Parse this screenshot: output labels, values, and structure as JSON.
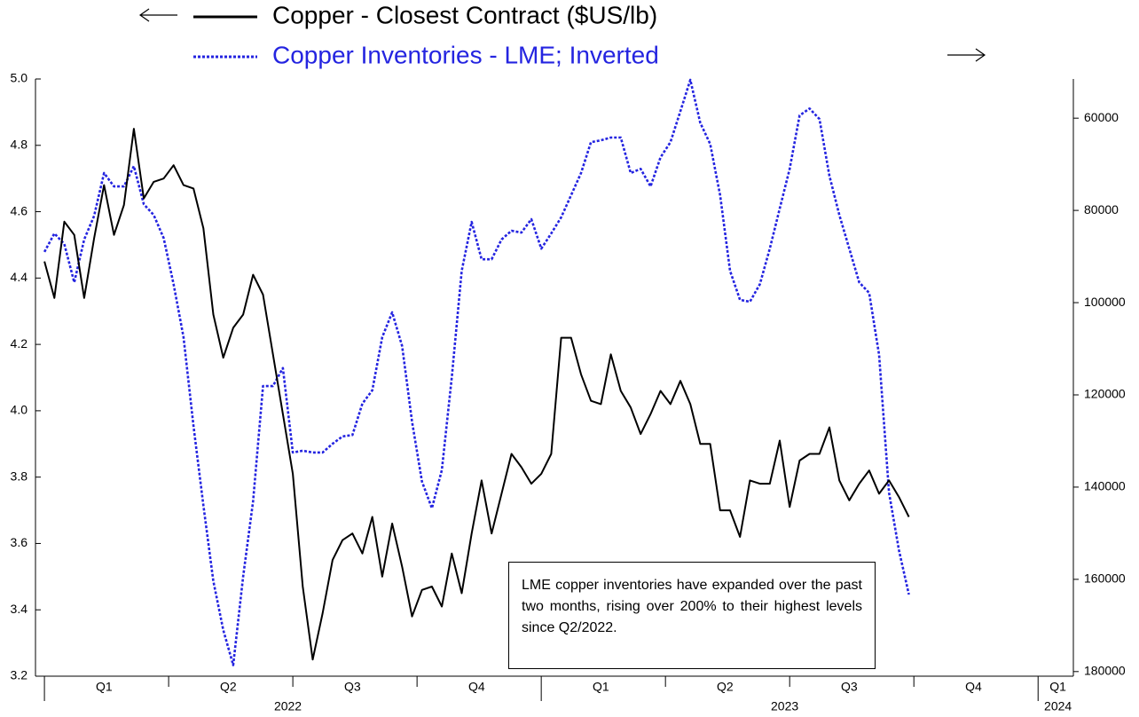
{
  "chart_data": {
    "type": "line",
    "series": [
      {
        "name": "Copper - Closest Contract ($US/lb)",
        "color": "#000000",
        "dash": false,
        "axis": "y",
        "values": [
          4.45,
          4.34,
          4.57,
          4.53,
          4.34,
          4.52,
          4.68,
          4.53,
          4.62,
          4.85,
          4.64,
          4.69,
          4.7,
          4.74,
          4.68,
          4.67,
          4.55,
          4.29,
          4.16,
          4.25,
          4.29,
          4.41,
          4.35,
          4.17,
          3.99,
          3.81,
          3.47,
          3.25,
          3.39,
          3.55,
          3.61,
          3.63,
          3.57,
          3.68,
          3.5,
          3.66,
          3.53,
          3.38,
          3.46,
          3.47,
          3.41,
          3.57,
          3.45,
          3.63,
          3.79,
          3.63,
          3.75,
          3.87,
          3.83,
          3.78,
          3.81,
          3.87,
          4.22,
          4.22,
          4.11,
          4.03,
          4.02,
          4.17,
          4.06,
          4.01,
          3.93,
          3.99,
          4.06,
          4.02,
          4.09,
          4.02,
          3.9,
          3.9,
          3.7,
          3.7,
          3.62,
          3.79,
          3.78,
          3.78,
          3.91,
          3.71,
          3.85,
          3.87,
          3.87,
          3.95,
          3.79,
          3.73,
          3.78,
          3.82,
          3.75,
          3.79,
          3.74,
          3.68
        ]
      },
      {
        "name": "Copper Inventories - LME; Inverted",
        "color": "#2424e0",
        "dash": true,
        "axis": "y2",
        "values": [
          89000,
          85000,
          87300,
          95600,
          86300,
          81200,
          71900,
          74800,
          74800,
          70400,
          78650,
          81000,
          86000,
          96000,
          107500,
          126700,
          144000,
          160400,
          171000,
          178600,
          159400,
          143100,
          118100,
          118100,
          114200,
          132500,
          132100,
          132500,
          132500,
          130600,
          129000,
          128700,
          121900,
          119000,
          107500,
          102100,
          109400,
          125800,
          138800,
          144600,
          136300,
          116200,
          93100,
          82500,
          90600,
          90600,
          86300,
          84400,
          84800,
          81900,
          88300,
          85000,
          81500,
          76700,
          71900,
          65200,
          64800,
          64200,
          64200,
          71900,
          71000,
          74800,
          68500,
          65200,
          58500,
          51700,
          61000,
          65600,
          76700,
          93100,
          99400,
          99800,
          96000,
          88300,
          79600,
          71000,
          59400,
          57900,
          60200,
          72500,
          81000,
          88300,
          95600,
          97900,
          111300,
          141200,
          153700,
          163300
        ]
      }
    ],
    "x": [
      2022,
      2022.02,
      2022.04,
      2022.06,
      2022.08,
      2022.1,
      2022.12,
      2022.14,
      2022.16,
      2022.18,
      2022.2,
      2022.22,
      2022.24,
      2022.26,
      2022.28,
      2022.3,
      2022.32,
      2022.34,
      2022.36,
      2022.38,
      2022.4,
      2022.42,
      2022.44,
      2022.46,
      2022.48,
      2022.5,
      2022.52,
      2022.54,
      2022.56,
      2022.58,
      2022.6,
      2022.62,
      2022.64,
      2022.66,
      2022.68,
      2022.7,
      2022.72,
      2022.74,
      2022.76,
      2022.78,
      2022.8,
      2022.82,
      2022.84,
      2022.86,
      2022.88,
      2022.9,
      2022.92,
      2022.94,
      2022.96,
      2022.98,
      2023,
      2023.02,
      2023.04,
      2023.06,
      2023.08,
      2023.1,
      2023.12,
      2023.14,
      2023.16,
      2023.18,
      2023.2,
      2023.22,
      2023.24,
      2023.26,
      2023.28,
      2023.3,
      2023.32,
      2023.34,
      2023.36,
      2023.38,
      2023.4,
      2023.42,
      2023.44,
      2023.46,
      2023.48,
      2023.5,
      2023.52,
      2023.54,
      2023.56,
      2023.58,
      2023.6,
      2023.62,
      2023.64,
      2023.66,
      2023.68,
      2023.7,
      2023.72,
      2023.74
    ],
    "xlim": [
      2021.982,
      2024.071
    ],
    "x_tick_marks": [
      2022,
      2022.25,
      2022.5,
      2022.75,
      2023,
      2023.25,
      2023.5,
      2023.75,
      2024
    ],
    "quarter_labels": [
      {
        "value": 2022.12,
        "label": "Q1"
      },
      {
        "value": 2022.37,
        "label": "Q2"
      },
      {
        "value": 2022.62,
        "label": "Q3"
      },
      {
        "value": 2022.87,
        "label": "Q4"
      },
      {
        "value": 2023.12,
        "label": "Q1"
      },
      {
        "value": 2023.37,
        "label": "Q2"
      },
      {
        "value": 2023.62,
        "label": "Q3"
      },
      {
        "value": 2023.87,
        "label": "Q4"
      },
      {
        "value": 2024.04,
        "label": "Q1"
      }
    ],
    "year_labels": [
      {
        "value": 2022.49,
        "label": "2022"
      },
      {
        "value": 2023.49,
        "label": "2023"
      },
      {
        "value": 2024.04,
        "label": "2024"
      }
    ],
    "ylim": [
      3.2,
      5.0
    ],
    "yticks": [
      {
        "value": 3.2,
        "label": "3.2"
      },
      {
        "value": 3.4,
        "label": "3.4"
      },
      {
        "value": 3.6,
        "label": "3.6"
      },
      {
        "value": 3.8,
        "label": "3.8"
      },
      {
        "value": 4.0,
        "label": "4.0"
      },
      {
        "value": 4.2,
        "label": "4.2"
      },
      {
        "value": 4.4,
        "label": "4.4"
      },
      {
        "value": 4.6,
        "label": "4.6"
      },
      {
        "value": 4.8,
        "label": "4.8"
      },
      {
        "value": 5.0,
        "label": "5.0"
      }
    ],
    "y2lim": [
      181000,
      51500
    ],
    "y2ticks": [
      60000,
      80000,
      100000,
      120000,
      140000,
      160000,
      180000
    ],
    "annotation": "LME copper inventories have expanded over the past two months, rising over 200% to their highest levels since Q2/2022."
  }
}
